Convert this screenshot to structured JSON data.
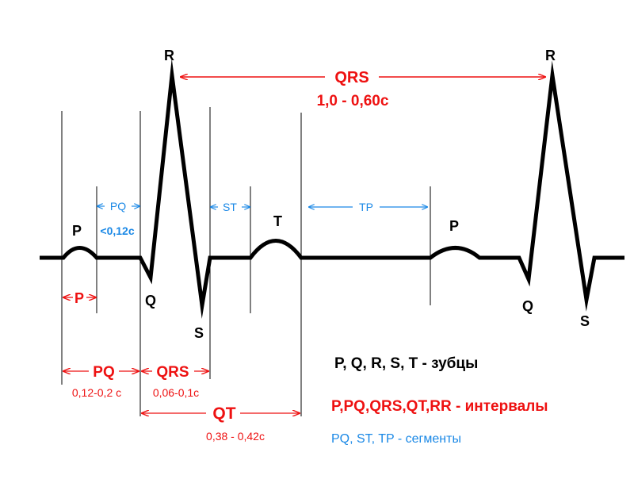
{
  "waves": {
    "p1": "P",
    "q1": "Q",
    "r1": "R",
    "s1": "S",
    "t1": "T",
    "p2": "P",
    "q2": "Q",
    "r2": "R",
    "s2": "S"
  },
  "rr": {
    "label": "QRS",
    "value": "1,0 - 0,60с"
  },
  "segments": {
    "pq": "PQ",
    "pq_value": "<0,12с",
    "st": "ST",
    "tp": "TP"
  },
  "intervals": {
    "p": "P",
    "pq": "PQ",
    "pq_value": "0,12-0,2 с",
    "qrs": "QRS",
    "qrs_value": "0,06-0,1с",
    "qt": "QT",
    "qt_value": "0,38 - 0,42с"
  },
  "legend": {
    "waves": "P, Q, R, S, T - зубцы",
    "intervals": "P,PQ,QRS,QT,RR - интервалы",
    "segments": "PQ, ST, TP  -  сегменты"
  },
  "colors": {
    "wave": "#000000",
    "interval": "#ee1111",
    "segment": "#1a88e6"
  }
}
